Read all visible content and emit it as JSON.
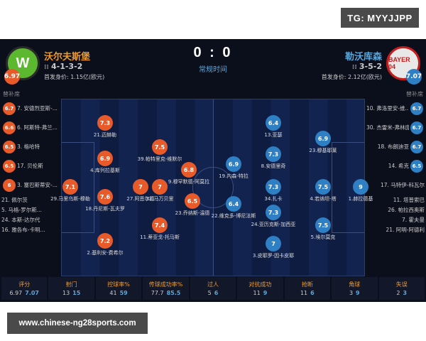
{
  "watermark": {
    "tg": "TG: MYYJJPP",
    "site": "www.chinese-ng28sports.com"
  },
  "match": {
    "score": "0 : 0",
    "status": "常规时间"
  },
  "home": {
    "name": "沃尔夫斯堡",
    "formation": "4-1-3-2",
    "value": "首发身价: 1.15亿(欧元)",
    "rating": "6.97",
    "logo_text": "W",
    "color": "#f19a2c",
    "bench_label": "替补席",
    "bench": [
      {
        "rating": "6.7",
        "name": "7. 安德烈亚斯-..."
      },
      {
        "rating": "6.6",
        "name": "6. 阿斯特-弗兰..."
      },
      {
        "rating": "6.5",
        "name": "3. 格哈特"
      },
      {
        "rating": "6.5",
        "name": "17. 贝伦斯"
      },
      {
        "rating": "6",
        "name": "3. 塞巴斯蒂安-..."
      },
      {
        "rating": "",
        "name": "21. 佩尔茨"
      },
      {
        "rating": "",
        "name": "5. 马格-罗尔斯..."
      },
      {
        "rating": "",
        "name": "24. 本斯-达尔代"
      },
      {
        "rating": "",
        "name": "16. 雅各布-卡明..."
      }
    ]
  },
  "away": {
    "name": "勒沃库森",
    "formation": "3-5-2",
    "value": "首发身价: 2.12亿(欧元)",
    "rating": "7.07",
    "logo_text": "BAYER 04",
    "color": "#5ea5d8",
    "bench_label": "替补席",
    "bench": [
      {
        "rating": "6.7",
        "name": "10. 弗洛里安-维..."
      },
      {
        "rating": "6.7",
        "name": "30. 杰雷米-弗林庞"
      },
      {
        "rating": "6.7",
        "name": "18. 布朗迪亚"
      },
      {
        "rating": "6.5",
        "name": "14. 希克"
      },
      {
        "rating": "",
        "name": "17. 马特伊-科瓦尔"
      },
      {
        "rating": "",
        "name": "11. 塔普索巴"
      },
      {
        "rating": "",
        "name": "26. 帕拉西奥斯"
      },
      {
        "rating": "",
        "name": "7. 霍夫曼"
      },
      {
        "rating": "",
        "name": "21. 阿明-阿德利"
      }
    ]
  },
  "players": [
    {
      "side": "home",
      "rating": "7.1",
      "name": "29.马里乌斯-穆勒"
    },
    {
      "side": "home",
      "rating": "7.3",
      "name": "21.迈赫勒"
    },
    {
      "side": "home",
      "rating": "6.9",
      "name": "4.库列拉基斯"
    },
    {
      "side": "home",
      "rating": "7.6",
      "name": "18.丹尼斯-瓦夫罗"
    },
    {
      "side": "home",
      "rating": "7.2",
      "name": "2.基利安-费希尔"
    },
    {
      "side": "home",
      "rating": "7",
      "name": "27.阿恩尔德"
    },
    {
      "side": "home",
      "rating": "7.5",
      "name": "39.帕特里克-维默尔"
    },
    {
      "side": "home",
      "rating": "7",
      "name": "32.马万贝里"
    },
    {
      "side": "home",
      "rating": "7.4",
      "name": "11.蒂亚戈-托马斯"
    },
    {
      "side": "home",
      "rating": "6.8",
      "name": "9.穆罕默德-阿莫拉"
    },
    {
      "side": "home",
      "rating": "6.5",
      "name": "23.乔纳斯-温德"
    },
    {
      "side": "away",
      "rating": "9",
      "name": "1.赫拉德基"
    },
    {
      "side": "away",
      "rating": "7.5",
      "name": "4.若纳坦-塔"
    },
    {
      "side": "away",
      "rating": "6.9",
      "name": "23.穆基耶莱"
    },
    {
      "side": "away",
      "rating": "7.5",
      "name": "5.埃尔莫克"
    },
    {
      "side": "away",
      "rating": "6.4",
      "name": "13.亚瑟"
    },
    {
      "side": "away",
      "rating": "7.3",
      "name": "8.安德里奇"
    },
    {
      "side": "away",
      "rating": "7.3",
      "name": "34.扎卡"
    },
    {
      "side": "away",
      "rating": "7.3",
      "name": "24.亚历克斯-加西亚"
    },
    {
      "side": "away",
      "rating": "7",
      "name": "3.皮耶罗-因卡皮耶"
    },
    {
      "side": "away",
      "rating": "6.9",
      "name": "19.内森-特拉"
    },
    {
      "side": "away",
      "rating": "6.4",
      "name": "22.维克多-博尼法斯"
    }
  ],
  "stats": [
    {
      "label": "评分",
      "home": "6.97",
      "away": "7.07"
    },
    {
      "label": "射门",
      "home": "13",
      "away": "15"
    },
    {
      "label": "控球率%",
      "home": "41",
      "away": "59"
    },
    {
      "label": "传球成功率%",
      "home": "77.7",
      "away": "85.5"
    },
    {
      "label": "过人",
      "home": "5",
      "away": "6"
    },
    {
      "label": "对抗成功",
      "home": "11",
      "away": "9"
    },
    {
      "label": "抢断",
      "home": "11",
      "away": "6"
    },
    {
      "label": "角球",
      "home": "3",
      "away": "9"
    },
    {
      "label": "失误",
      "home": "2",
      "away": "3"
    }
  ]
}
